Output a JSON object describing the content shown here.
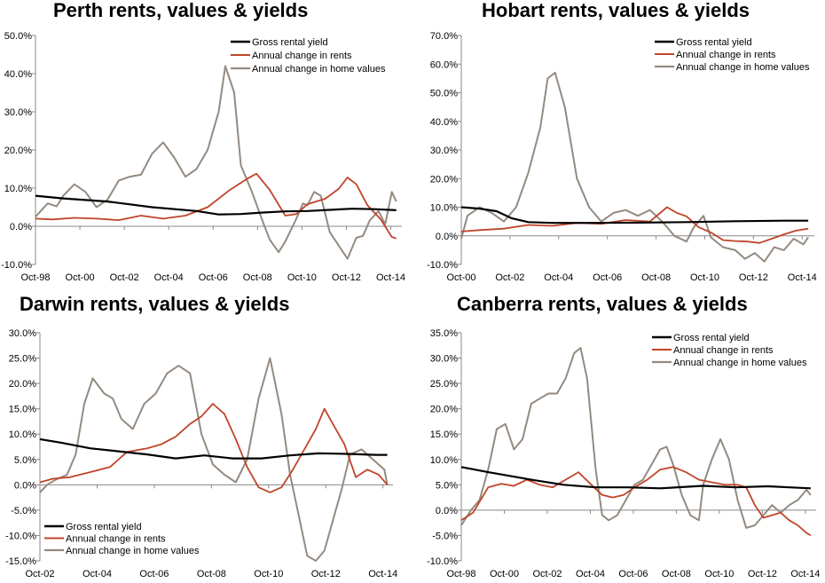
{
  "colors": {
    "yield": "#000000",
    "rents": "#C0442A",
    "values": "#948A80"
  },
  "legend_labels": [
    "Gross rental yield",
    "Annual change in rents",
    "Annual change in home values"
  ],
  "chart_data": [
    {
      "type": "line",
      "title": "Perth rents, values & yields",
      "x_ticks": [
        "Oct-98",
        "Oct-00",
        "Oct-02",
        "Oct-04",
        "Oct-06",
        "Oct-08",
        "Oct-10",
        "Oct-12",
        "Oct-14"
      ],
      "x_range": [
        1998.75,
        2015.25
      ],
      "ylim": [
        -10,
        50
      ],
      "y_ticks": [
        "-10.0%",
        "0.0%",
        "10.0%",
        "20.0%",
        "30.0%",
        "40.0%",
        "50.0%"
      ],
      "legend_position": "top-right",
      "series": [
        {
          "name": "Gross rental yield",
          "x": [
            1998.75,
            2000,
            2002,
            2004,
            2006,
            2007,
            2008,
            2009,
            2010,
            2011,
            2012,
            2013,
            2014,
            2015
          ],
          "y": [
            8,
            7.3,
            6.5,
            5.0,
            4.0,
            3.1,
            3.2,
            3.6,
            3.9,
            4.0,
            4.3,
            4.6,
            4.5,
            4.2
          ]
        },
        {
          "name": "Annual change in rents",
          "x": [
            1998.75,
            1999.5,
            2000.5,
            2001.5,
            2002.5,
            2003.5,
            2004.5,
            2005.5,
            2006.5,
            2007.5,
            2008.3,
            2008.7,
            2009.3,
            2010,
            2010.5,
            2011,
            2011.8,
            2012.4,
            2012.8,
            2013.2,
            2013.7,
            2014.3,
            2014.8,
            2015
          ],
          "y": [
            2.0,
            1.8,
            2.2,
            2.0,
            1.6,
            2.8,
            2.0,
            2.8,
            5.0,
            9.5,
            12.5,
            13.8,
            9.5,
            2.8,
            3.2,
            5.8,
            7.2,
            9.8,
            12.8,
            11.0,
            5.5,
            1.8,
            -2.8,
            -3.2
          ]
        },
        {
          "name": "Annual change in home values",
          "x": [
            1998.75,
            1999.3,
            1999.7,
            2000,
            2000.5,
            2001,
            2001.5,
            2002,
            2002.5,
            2003,
            2003.5,
            2004,
            2004.5,
            2005,
            2005.5,
            2006,
            2006.5,
            2007,
            2007.3,
            2007.7,
            2008,
            2008.5,
            2009,
            2009.3,
            2009.7,
            2010,
            2010.5,
            2010.8,
            2011,
            2011.3,
            2011.6,
            2012,
            2012.4,
            2012.8,
            2013.2,
            2013.5,
            2013.8,
            2014.2,
            2014.5,
            2014.8,
            2015
          ],
          "y": [
            2.5,
            6,
            5.2,
            8,
            11,
            9,
            5,
            7,
            12,
            13,
            13.5,
            19,
            22,
            18,
            13,
            15,
            20,
            30,
            42,
            35,
            16,
            9,
            1,
            -3.5,
            -6.8,
            -4,
            2,
            6,
            5.5,
            9,
            8,
            -1.5,
            -5,
            -8.5,
            -3,
            -2.5,
            1.5,
            4,
            0.5,
            9,
            6.5
          ]
        }
      ]
    },
    {
      "type": "line",
      "title": "Hobart rents, values & yields",
      "x_ticks": [
        "Oct-00",
        "Oct-02",
        "Oct-04",
        "Oct-06",
        "Oct-08",
        "Oct-10",
        "Oct-12",
        "Oct-14"
      ],
      "x_range": [
        2000.75,
        2015.25
      ],
      "ylim": [
        -10,
        70
      ],
      "y_ticks": [
        "-10.0%",
        "0.0%",
        "10.0%",
        "20.0%",
        "30.0%",
        "40.0%",
        "50.0%",
        "60.0%",
        "70.0%"
      ],
      "legend_position": "top-right",
      "series": [
        {
          "name": "Gross rental yield",
          "x": [
            2000.75,
            2001.5,
            2002.2,
            2002.8,
            2003.5,
            2004.5,
            2006,
            2008,
            2010,
            2012,
            2014,
            2015
          ],
          "y": [
            10,
            9.5,
            8.6,
            6.2,
            4.8,
            4.5,
            4.5,
            4.6,
            4.8,
            5.1,
            5.3,
            5.3
          ]
        },
        {
          "name": "Annual change in rents",
          "x": [
            2000.75,
            2001.5,
            2002.5,
            2003.5,
            2004.5,
            2005.5,
            2006.5,
            2007.5,
            2008.5,
            2009.2,
            2009.6,
            2010,
            2010.5,
            2011,
            2011.5,
            2012,
            2012.5,
            2013,
            2013.5,
            2014,
            2014.5,
            2015
          ],
          "y": [
            1.5,
            2,
            2.5,
            3.8,
            3.5,
            4.5,
            4.2,
            5.5,
            5,
            10,
            8,
            6.8,
            3,
            1.2,
            -1.5,
            -1.8,
            -2,
            -2.5,
            -1,
            0.5,
            1.8,
            2.5
          ]
        },
        {
          "name": "Annual change in home values",
          "x": [
            2000.75,
            2001,
            2001.5,
            2002,
            2002.5,
            2003,
            2003.5,
            2004,
            2004.3,
            2004.6,
            2005,
            2005.5,
            2006,
            2006.5,
            2007,
            2007.5,
            2008,
            2008.5,
            2009,
            2009.5,
            2010,
            2010.3,
            2010.7,
            2011,
            2011.5,
            2012,
            2012.4,
            2012.8,
            2013.2,
            2013.6,
            2014,
            2014.4,
            2014.8,
            2015
          ],
          "y": [
            -1,
            7,
            10,
            8,
            5,
            10,
            22,
            38,
            55,
            57,
            45,
            20,
            10,
            5,
            8,
            9,
            7,
            9,
            5,
            0,
            -2,
            3,
            7,
            -0.5,
            -4,
            -5,
            -8,
            -6,
            -9,
            -4,
            -5,
            -1,
            -3,
            -0.5
          ]
        }
      ]
    },
    {
      "type": "line",
      "title": "Darwin rents, values & yields",
      "x_ticks": [
        "Oct-02",
        "Oct-04",
        "Oct-06",
        "Oct-08",
        "Oct-10",
        "Oct-12",
        "Oct-14"
      ],
      "x_range": [
        2002.75,
        2015.1
      ],
      "ylim": [
        -15,
        30
      ],
      "y_ticks": [
        "-15.0%",
        "-10.0%",
        "-5.0%",
        "0.0%",
        "5.0%",
        "10.0%",
        "15.0%",
        "20.0%",
        "25.0%",
        "30.0%"
      ],
      "legend_position": "bottom-left",
      "series": [
        {
          "name": "Gross rental yield",
          "x": [
            2002.75,
            2003.5,
            2004.5,
            2005.5,
            2006.5,
            2007.5,
            2008.5,
            2009.5,
            2010.5,
            2011.5,
            2012.5,
            2013.5,
            2014.5,
            2014.9
          ],
          "y": [
            9,
            8.3,
            7.2,
            6.6,
            6,
            5.2,
            5.8,
            5.2,
            5.2,
            5.8,
            6.2,
            6.1,
            5.9,
            5.9
          ]
        },
        {
          "name": "Annual change in rents",
          "x": [
            2002.75,
            2003.2,
            2003.8,
            2004.5,
            2005.2,
            2005.8,
            2006.5,
            2007,
            2007.5,
            2008,
            2008.4,
            2008.8,
            2009.2,
            2009.6,
            2010,
            2010.4,
            2010.8,
            2011.2,
            2011.6,
            2012,
            2012.4,
            2012.7,
            2013,
            2013.4,
            2013.8,
            2014.2,
            2014.6,
            2014.9
          ],
          "y": [
            0.5,
            1.2,
            1.5,
            2.5,
            3.5,
            6.5,
            7.2,
            8,
            9.5,
            12,
            13.5,
            16,
            14,
            9,
            3.5,
            -0.5,
            -1.5,
            -0.5,
            3,
            7,
            11,
            15,
            12,
            8,
            1.5,
            3,
            2,
            0
          ]
        },
        {
          "name": "Annual change in home values",
          "x": [
            2002.75,
            2003,
            2003.3,
            2003.7,
            2004,
            2004.3,
            2004.6,
            2005,
            2005.3,
            2005.6,
            2006,
            2006.4,
            2006.8,
            2007.2,
            2007.6,
            2008,
            2008.4,
            2008.8,
            2009.2,
            2009.6,
            2010,
            2010.4,
            2010.8,
            2011.2,
            2011.5,
            2011.8,
            2012.1,
            2012.4,
            2012.7,
            2013,
            2013.3,
            2013.6,
            2014,
            2014.4,
            2014.8,
            2014.9
          ],
          "y": [
            -1.5,
            0,
            1,
            2,
            6,
            16,
            21,
            18,
            17,
            13,
            11,
            16,
            18,
            22,
            23.5,
            22,
            10,
            4,
            2,
            0.5,
            5,
            17,
            25,
            14,
            2,
            -6,
            -14,
            -15,
            -13,
            -7,
            -1,
            6,
            7,
            5,
            3,
            0
          ]
        }
      ]
    },
    {
      "type": "line",
      "title": "Canberra rents, values & yields",
      "x_ticks": [
        "Oct-98",
        "Oct-00",
        "Oct-02",
        "Oct-04",
        "Oct-06",
        "Oct-08",
        "Oct-10",
        "Oct-12",
        "Oct-14"
      ],
      "x_range": [
        1998.75,
        2015.25
      ],
      "ylim": [
        -10,
        35
      ],
      "y_ticks": [
        "-10.0%",
        "-5.0%",
        "0.0%",
        "5.0%",
        "10.0%",
        "15.0%",
        "20.0%",
        "25.0%",
        "30.0%",
        "35.0%"
      ],
      "legend_position": "top-right",
      "series": [
        {
          "name": "Gross rental yield",
          "x": [
            1998.75,
            2000,
            2002,
            2003.5,
            2005,
            2006.5,
            2008,
            2010,
            2011.5,
            2013,
            2014,
            2015
          ],
          "y": [
            8.5,
            7.5,
            6,
            5,
            4.5,
            4.5,
            4.3,
            4.8,
            4.5,
            4.7,
            4.5,
            4.3
          ]
        },
        {
          "name": "Annual change in rents",
          "x": [
            1998.75,
            1999.3,
            2000,
            2000.6,
            2001.2,
            2001.8,
            2002.4,
            2003,
            2003.6,
            2004.2,
            2004.8,
            2005.3,
            2005.8,
            2006.3,
            2006.8,
            2007.4,
            2008,
            2008.6,
            2009.2,
            2009.8,
            2010.4,
            2011,
            2011.6,
            2012,
            2012.4,
            2012.8,
            2013.2,
            2013.6,
            2014,
            2014.4,
            2014.8,
            2015
          ],
          "y": [
            -2,
            -0.5,
            4.5,
            5.2,
            4.8,
            6,
            5,
            4.5,
            6,
            7.5,
            5,
            3,
            2.5,
            3,
            4.5,
            6,
            8,
            8.5,
            7.5,
            6,
            5.5,
            5,
            5,
            4.5,
            1,
            -1.5,
            -1,
            -0.5,
            -2,
            -3,
            -4.5,
            -5
          ]
        },
        {
          "name": "Annual change in home values",
          "x": [
            1998.75,
            1999.2,
            1999.6,
            2000,
            2000.4,
            2000.8,
            2001.2,
            2001.6,
            2002,
            2002.4,
            2002.8,
            2003.2,
            2003.6,
            2004,
            2004.3,
            2004.6,
            2005,
            2005.3,
            2005.6,
            2006,
            2006.4,
            2006.8,
            2007.2,
            2007.6,
            2008,
            2008.3,
            2008.6,
            2009,
            2009.4,
            2009.8,
            2010,
            2010.4,
            2010.8,
            2011.2,
            2011.6,
            2012,
            2012.4,
            2012.8,
            2013.2,
            2013.6,
            2014,
            2014.4,
            2014.8,
            2015
          ],
          "y": [
            -3,
            0,
            2,
            8,
            16,
            17,
            12,
            14,
            21,
            22,
            23,
            23,
            26,
            31,
            32,
            26,
            8,
            -1,
            -2,
            -1,
            2,
            5,
            6,
            9,
            12,
            12.5,
            9,
            3,
            -1,
            -2,
            5,
            10,
            14,
            10,
            2,
            -3.5,
            -3,
            -1,
            1,
            -0.5,
            1,
            2,
            4,
            3
          ]
        }
      ]
    }
  ]
}
